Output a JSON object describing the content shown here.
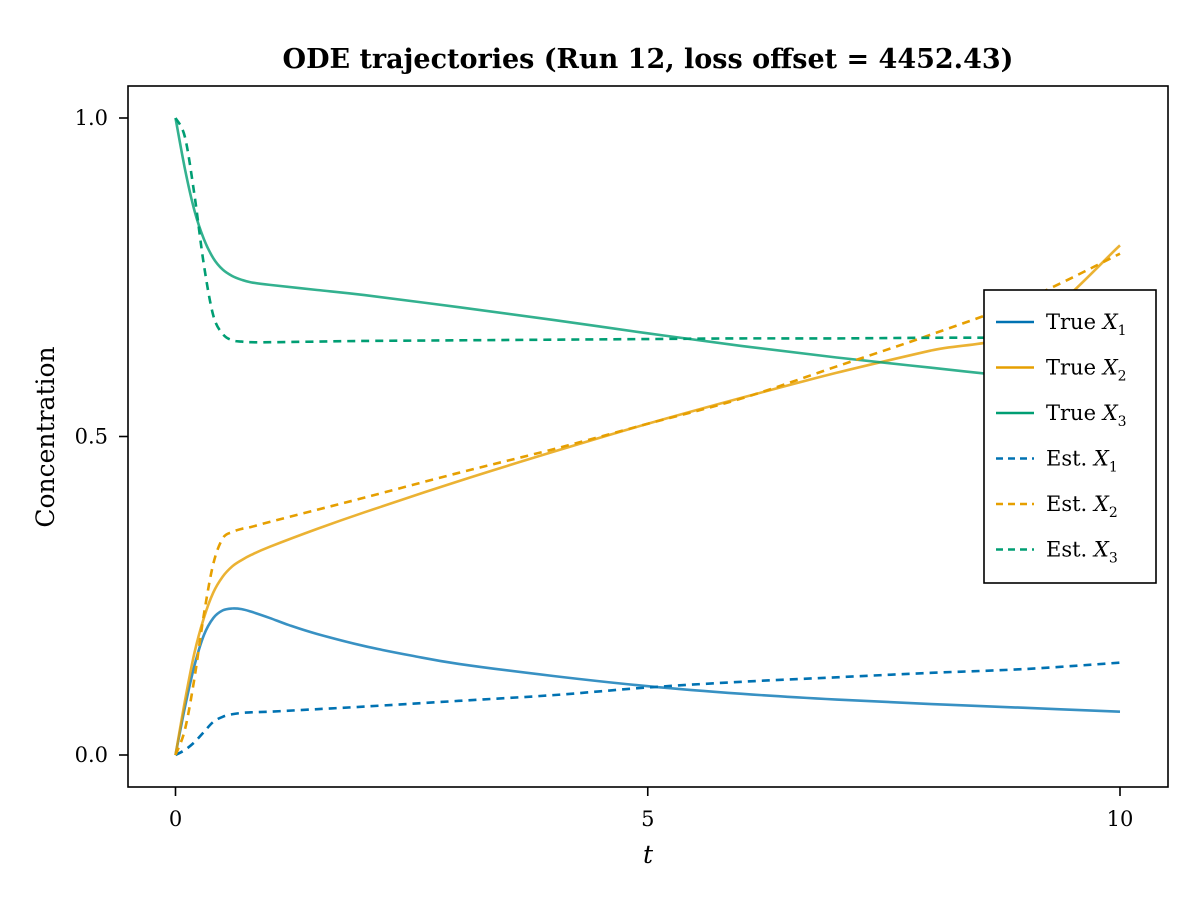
{
  "chart_data": {
    "type": "line",
    "title": "ODE trajectories (Run 12, loss offset = 4452.43)",
    "xlabel": "t",
    "ylabel": "Concentration",
    "xlim": [
      -0.5,
      10.5
    ],
    "ylim": [
      -0.05,
      1.05
    ],
    "xticks": [
      0,
      5,
      10
    ],
    "xtick_labels": [
      "0",
      "5",
      "10"
    ],
    "yticks": [
      0.0,
      0.5,
      1.0
    ],
    "ytick_labels": [
      "0.0",
      "0.5",
      "1.0"
    ],
    "grid": false,
    "legend_position": "right",
    "series": [
      {
        "name": "True X1",
        "legend_prefix": "True",
        "legend_var": "X",
        "legend_sub": "1",
        "color": "#0072B2",
        "dash": "solid",
        "opacity": 0.78,
        "x": [
          0,
          0.1,
          0.2,
          0.3,
          0.4,
          0.5,
          0.6,
          0.7,
          0.8,
          1.0,
          1.2,
          1.5,
          2,
          2.5,
          3,
          4,
          5,
          6,
          7,
          8,
          9,
          10
        ],
        "y": [
          0,
          0.075,
          0.14,
          0.188,
          0.215,
          0.227,
          0.23,
          0.229,
          0.225,
          0.215,
          0.204,
          0.19,
          0.171,
          0.156,
          0.143,
          0.124,
          0.108,
          0.096,
          0.087,
          0.08,
          0.074,
          0.068
        ]
      },
      {
        "name": "True X2",
        "legend_prefix": "True",
        "legend_var": "X",
        "legend_sub": "2",
        "color": "#E69F00",
        "dash": "solid",
        "opacity": 0.8,
        "x": [
          0,
          0.1,
          0.2,
          0.3,
          0.4,
          0.5,
          0.6,
          0.7,
          0.8,
          1.0,
          1.5,
          2,
          3,
          4,
          5,
          6,
          7,
          8,
          9,
          10
        ],
        "y": [
          0,
          0.085,
          0.16,
          0.215,
          0.255,
          0.28,
          0.296,
          0.306,
          0.314,
          0.327,
          0.355,
          0.381,
          0.43,
          0.476,
          0.52,
          0.561,
          0.6,
          0.635,
          0.668,
          0.8
        ]
      },
      {
        "name": "True X3",
        "legend_prefix": "True",
        "legend_var": "X",
        "legend_sub": "3",
        "color": "#009E73",
        "dash": "solid",
        "opacity": 0.8,
        "x": [
          0,
          0.1,
          0.2,
          0.3,
          0.4,
          0.5,
          0.6,
          0.7,
          0.8,
          1.0,
          1.5,
          2,
          3,
          4,
          5,
          6,
          7,
          8,
          9,
          10
        ],
        "y": [
          1.0,
          0.92,
          0.855,
          0.81,
          0.78,
          0.762,
          0.752,
          0.746,
          0.742,
          0.738,
          0.73,
          0.722,
          0.703,
          0.683,
          0.662,
          0.642,
          0.624,
          0.608,
          0.592,
          0.578
        ]
      },
      {
        "name": "Est. X1",
        "legend_prefix": "Est.",
        "legend_var": "X",
        "legend_sub": "1",
        "color": "#0072B2",
        "dash": "dashed",
        "opacity": 1,
        "x": [
          0,
          0.1,
          0.2,
          0.3,
          0.4,
          0.5,
          0.6,
          0.7,
          0.8,
          1.0,
          1.5,
          2,
          3,
          4,
          5,
          6,
          7,
          8,
          9,
          10
        ],
        "y": [
          0,
          0.008,
          0.02,
          0.036,
          0.052,
          0.06,
          0.064,
          0.066,
          0.067,
          0.068,
          0.072,
          0.076,
          0.085,
          0.094,
          0.106,
          0.115,
          0.122,
          0.129,
          0.135,
          0.145
        ]
      },
      {
        "name": "Est. X2",
        "legend_prefix": "Est.",
        "legend_var": "X",
        "legend_sub": "2",
        "color": "#E69F00",
        "dash": "dashed",
        "opacity": 1,
        "x": [
          0,
          0.1,
          0.2,
          0.3,
          0.4,
          0.5,
          0.6,
          0.7,
          0.8,
          1.0,
          1.5,
          2,
          3,
          4,
          5,
          6,
          7,
          8,
          9,
          10
        ],
        "y": [
          0,
          0.04,
          0.12,
          0.22,
          0.3,
          0.34,
          0.35,
          0.355,
          0.358,
          0.366,
          0.385,
          0.404,
          0.443,
          0.48,
          0.52,
          0.56,
          0.61,
          0.66,
          0.715,
          0.787
        ]
      },
      {
        "name": "Est. X3",
        "legend_prefix": "Est.",
        "legend_var": "X",
        "legend_sub": "3",
        "color": "#009E73",
        "dash": "dashed",
        "opacity": 1,
        "x": [
          0,
          0.1,
          0.2,
          0.3,
          0.4,
          0.5,
          0.6,
          0.7,
          0.8,
          1.0,
          1.5,
          2,
          3,
          4,
          5,
          6,
          7,
          8,
          9,
          10
        ],
        "y": [
          1.0,
          0.97,
          0.88,
          0.77,
          0.69,
          0.661,
          0.651,
          0.649,
          0.648,
          0.648,
          0.649,
          0.65,
          0.651,
          0.652,
          0.653,
          0.654,
          0.654,
          0.655,
          0.655,
          0.655
        ]
      }
    ]
  }
}
